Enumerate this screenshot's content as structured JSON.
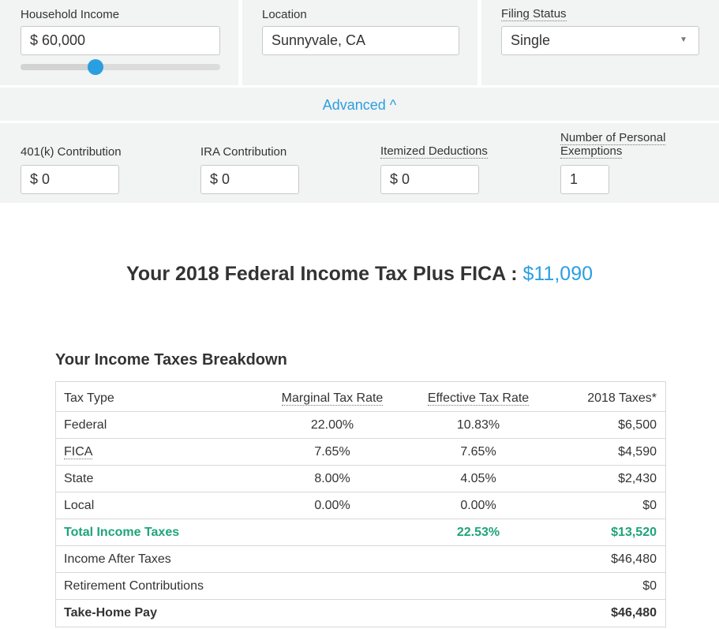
{
  "inputs": {
    "household_income": {
      "label": "Household Income",
      "value": "$ 60,000",
      "slider_fraction": 0.375
    },
    "location": {
      "label": "Location",
      "value": "Sunnyvale, CA"
    },
    "filing_status": {
      "label": "Filing Status",
      "value": "Single"
    }
  },
  "advanced": {
    "label": "Advanced ^"
  },
  "advanced_fields": {
    "k401": {
      "label": "401(k) Contribution",
      "value": "$ 0"
    },
    "ira": {
      "label": "IRA Contribution",
      "value": "$ 0"
    },
    "itemized": {
      "label": "Itemized Deductions",
      "value": "$ 0"
    },
    "exemptions": {
      "label_line1": "Number of Personal",
      "label_line2": "Exemptions",
      "value": "1"
    }
  },
  "headline": {
    "text": "Your 2018 Federal Income Tax Plus FICA :",
    "amount": "$11,090"
  },
  "breakdown": {
    "title": "Your Income Taxes Breakdown",
    "headers": [
      "Tax Type",
      "Marginal Tax Rate",
      "Effective Tax Rate",
      "2018 Taxes*"
    ],
    "rows": [
      [
        "Federal",
        "22.00%",
        "10.83%",
        "$6,500"
      ],
      [
        "FICA",
        "7.65%",
        "7.65%",
        "$4,590"
      ],
      [
        "State",
        "8.00%",
        "4.05%",
        "$2,430"
      ],
      [
        "Local",
        "0.00%",
        "0.00%",
        "$0"
      ],
      [
        "Total Income Taxes",
        "",
        "22.53%",
        "$13,520"
      ],
      [
        "Income After Taxes",
        "",
        "",
        "$46,480"
      ],
      [
        "Retirement Contributions",
        "",
        "",
        "$0"
      ],
      [
        "Take-Home Pay",
        "",
        "",
        "$46,480"
      ]
    ]
  }
}
